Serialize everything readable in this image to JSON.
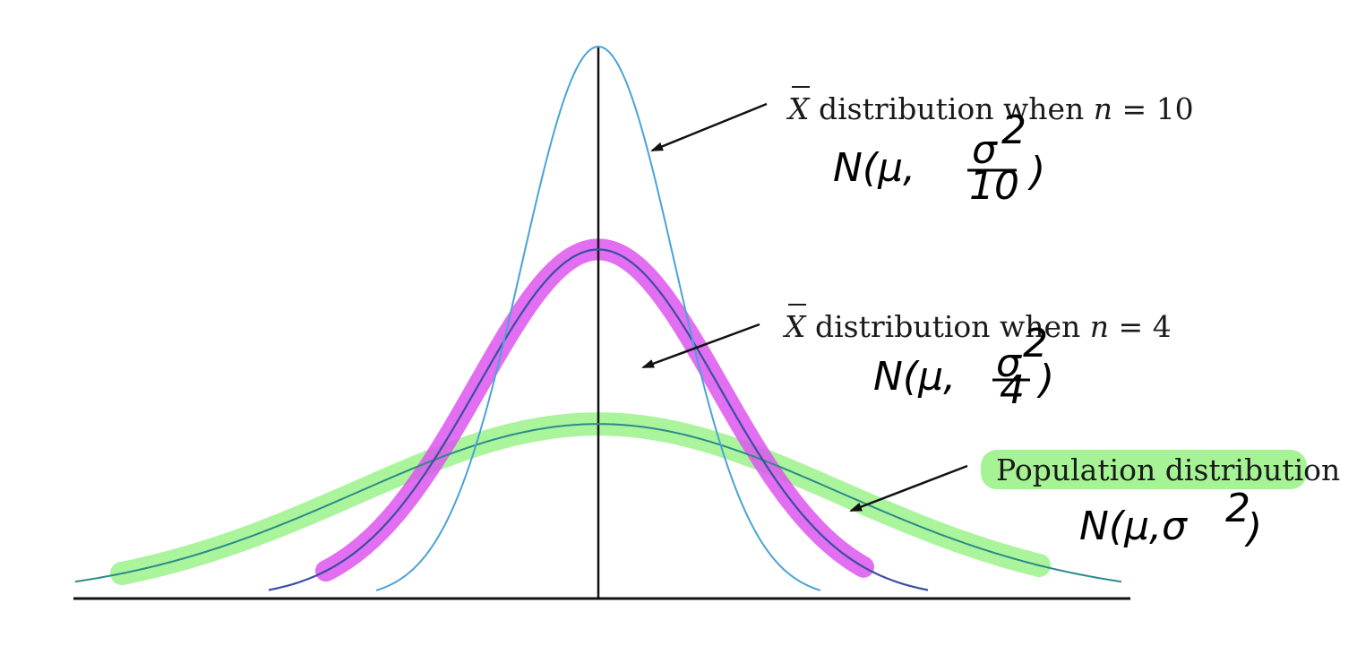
{
  "figure": {
    "curves": [
      {
        "id": "n10",
        "label_text": " distribution when ",
        "n_value": "10",
        "sigma": 0.3162,
        "color": "#4aa3d6",
        "highlight": null
      },
      {
        "id": "n4",
        "label_text": " distribution when ",
        "n_value": "4",
        "sigma": 0.5,
        "color": "#3a4fa0",
        "highlight": "#dd55ee"
      },
      {
        "id": "pop",
        "label_text": "Population distribution",
        "sigma": 1.0,
        "color": "#2c8a8a",
        "highlight": "#8ef07a"
      }
    ],
    "label_symbol": "X",
    "label_var": "n",
    "label_eq": " = ",
    "annotations": {
      "n10": {
        "prefix": "N(μ, ",
        "num": "σ",
        "sup": "2",
        "den": "10",
        "suffix": ")"
      },
      "n4": {
        "prefix": "N(μ, ",
        "num": "σ",
        "sup": "2",
        "den": "4",
        "suffix": ")"
      },
      "pop": {
        "text": "N(μ,σ",
        "sup": "2",
        "suffix": ")"
      }
    },
    "axis_color": "#111111"
  }
}
